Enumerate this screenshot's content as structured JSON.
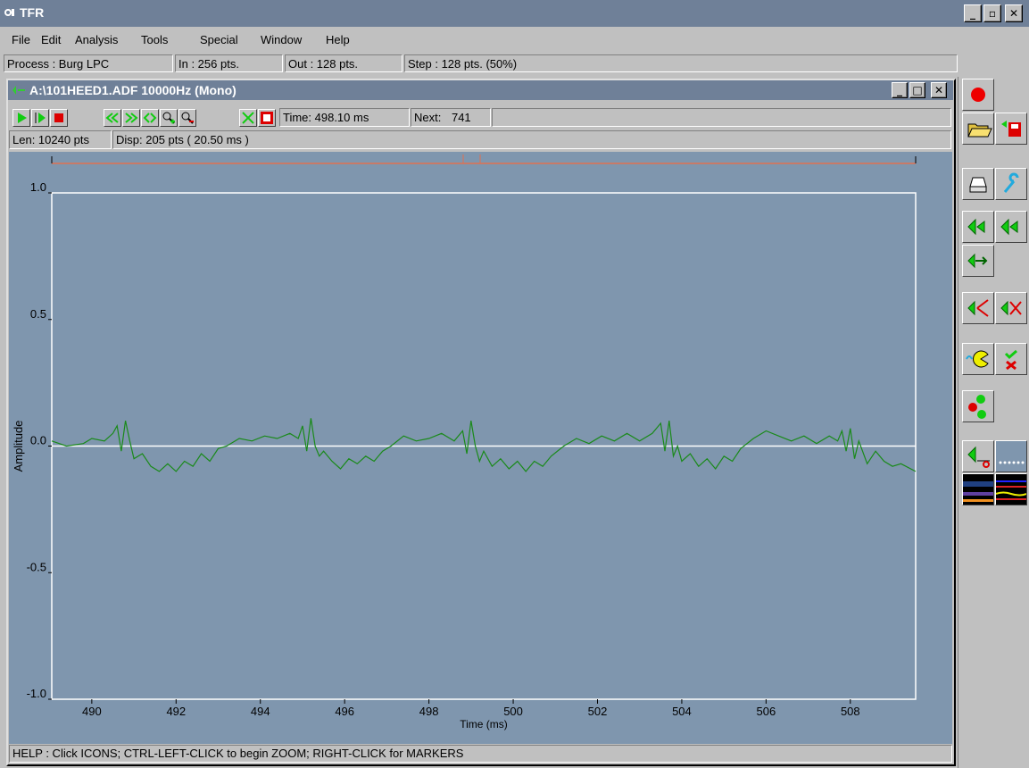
{
  "app": {
    "title": "TFR"
  },
  "menu": [
    "File",
    "Edit",
    "Analysis",
    "Tools",
    "Special",
    "Window",
    "Help"
  ],
  "process_bar": {
    "process": "Process : Burg LPC",
    "in": "In : 256 pts.",
    "out": "Out : 128 pts.",
    "step": "Step : 128 pts. (50%)"
  },
  "child_window": {
    "title": "A:\\101HEED1.ADF  10000Hz (Mono)",
    "time": "Time: 498.10 ms",
    "next_label": "Next:",
    "next_value": "741",
    "len": "Len: 10240 pts",
    "disp": "Disp: 205 pts  ( 20.50 ms )"
  },
  "help": "HELP : Click ICONS; CTRL-LEFT-CLICK to begin ZOOM; RIGHT-CLICK for MARKERS",
  "colors": {
    "waveform": "#1a8a1a",
    "plot_bg": "#7f96ae",
    "title_bar": "#6f8098",
    "marker": "#e07050"
  },
  "chart_data": {
    "type": "line",
    "xlabel": "Time (ms)",
    "ylabel": "Amplitude",
    "xlim": [
      489.05,
      509.55
    ],
    "ylim": [
      -1.0,
      1.0
    ],
    "xticks": [
      490,
      492,
      494,
      496,
      498,
      500,
      502,
      504,
      506,
      508
    ],
    "yticks": [
      1.0,
      0.5,
      0.0,
      -0.5,
      -1.0
    ],
    "ytick_labels": [
      "1.0",
      "0.5",
      "0.0",
      "-0.5",
      "-1.0"
    ],
    "grid": false,
    "series": [
      {
        "x": [
          489.05,
          489.4,
          489.8,
          490.0,
          490.3,
          490.5,
          490.6,
          490.7,
          490.8,
          490.9,
          491.0,
          491.2,
          491.4,
          491.6,
          491.8,
          492.0,
          492.2,
          492.4,
          492.6,
          492.8,
          493.0,
          493.2,
          493.5,
          493.8,
          494.1,
          494.4,
          494.7,
          494.9,
          495.0,
          495.1,
          495.2,
          495.3,
          495.4,
          495.5,
          495.7,
          495.9,
          496.1,
          496.3,
          496.5,
          496.7,
          496.9,
          497.1,
          497.4,
          497.7,
          498.0,
          498.3,
          498.6,
          498.8,
          498.9,
          499.0,
          499.1,
          499.2,
          499.3,
          499.5,
          499.7,
          499.9,
          500.1,
          500.3,
          500.5,
          500.7,
          500.9,
          501.2,
          501.5,
          501.8,
          502.1,
          502.4,
          502.7,
          503.0,
          503.3,
          503.5,
          503.6,
          503.7,
          503.8,
          503.9,
          504.0,
          504.2,
          504.4,
          504.6,
          504.8,
          505.0,
          505.2,
          505.4,
          505.7,
          506.0,
          506.3,
          506.6,
          506.9,
          507.2,
          507.5,
          507.7,
          507.8,
          507.9,
          508.0,
          508.1,
          508.2,
          508.4,
          508.6,
          508.8,
          509.0,
          509.2,
          509.55
        ],
        "y": [
          0.02,
          0.0,
          0.01,
          0.03,
          0.02,
          0.05,
          0.08,
          -0.02,
          0.1,
          0.02,
          -0.05,
          -0.03,
          -0.08,
          -0.1,
          -0.07,
          -0.1,
          -0.06,
          -0.08,
          -0.03,
          -0.06,
          -0.01,
          0.0,
          0.03,
          0.02,
          0.04,
          0.03,
          0.05,
          0.03,
          0.08,
          -0.02,
          0.11,
          0.0,
          -0.04,
          -0.02,
          -0.06,
          -0.09,
          -0.05,
          -0.07,
          -0.04,
          -0.06,
          -0.02,
          0.0,
          0.04,
          0.02,
          0.03,
          0.05,
          0.02,
          0.06,
          -0.03,
          0.1,
          0.0,
          -0.06,
          -0.02,
          -0.08,
          -0.05,
          -0.09,
          -0.06,
          -0.1,
          -0.06,
          -0.08,
          -0.04,
          0.0,
          0.03,
          0.01,
          0.04,
          0.02,
          0.05,
          0.02,
          0.05,
          0.09,
          -0.02,
          0.1,
          -0.04,
          0.0,
          -0.06,
          -0.03,
          -0.08,
          -0.05,
          -0.09,
          -0.04,
          -0.06,
          -0.01,
          0.03,
          0.06,
          0.04,
          0.02,
          0.04,
          0.01,
          0.04,
          0.02,
          0.06,
          -0.02,
          0.07,
          -0.05,
          0.02,
          -0.07,
          -0.02,
          -0.06,
          -0.08,
          -0.07,
          -0.1
        ]
      }
    ]
  }
}
